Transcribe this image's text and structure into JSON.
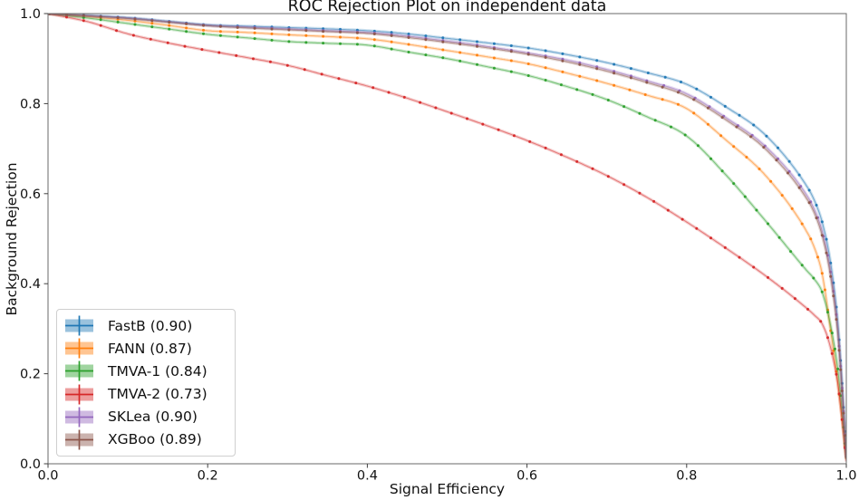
{
  "chart_data": {
    "type": "line",
    "title": "ROC Rejection Plot on independent data",
    "xlabel": "Signal Efficiency",
    "ylabel": "Background Rejection",
    "xlim": [
      0.0,
      1.0
    ],
    "ylim": [
      0.0,
      1.0
    ],
    "xticks": [
      "0.0",
      "0.2",
      "0.4",
      "0.6",
      "0.8",
      "1.0"
    ],
    "yticks": [
      "0.0",
      "0.2",
      "0.4",
      "0.6",
      "0.8",
      "1.0"
    ],
    "grid": false,
    "legend_position": "lower left",
    "marker_style": "dot-with-errorband",
    "x": [
      0.0,
      0.05,
      0.1,
      0.15,
      0.2,
      0.25,
      0.3,
      0.35,
      0.4,
      0.45,
      0.5,
      0.55,
      0.6,
      0.65,
      0.7,
      0.75,
      0.8,
      0.85,
      0.9,
      0.95,
      0.96,
      0.97,
      0.98,
      0.99,
      1.0
    ],
    "series": [
      {
        "name": "FastB",
        "legend_label": "FastB (0.90)",
        "auc": 0.9,
        "color": "#1f77b4",
        "y": [
          1.0,
          0.996,
          0.991,
          0.983,
          0.975,
          0.972,
          0.969,
          0.966,
          0.962,
          0.955,
          0.945,
          0.935,
          0.924,
          0.909,
          0.891,
          0.869,
          0.843,
          0.792,
          0.728,
          0.618,
          0.585,
          0.535,
          0.45,
          0.3,
          0.02
        ]
      },
      {
        "name": "FANN",
        "legend_label": "FANN (0.87)",
        "auc": 0.87,
        "color": "#ff7f0e",
        "y": [
          1.0,
          0.993,
          0.985,
          0.974,
          0.962,
          0.958,
          0.953,
          0.949,
          0.944,
          0.932,
          0.918,
          0.904,
          0.889,
          0.868,
          0.845,
          0.819,
          0.789,
          0.718,
          0.638,
          0.517,
          0.48,
          0.42,
          0.3,
          0.17,
          0.01
        ]
      },
      {
        "name": "TMVA-1",
        "legend_label": "TMVA-1 (0.84)",
        "auc": 0.84,
        "color": "#2ca02c",
        "y": [
          1.0,
          0.99,
          0.978,
          0.966,
          0.954,
          0.946,
          0.938,
          0.934,
          0.93,
          0.915,
          0.9,
          0.882,
          0.863,
          0.838,
          0.809,
          0.771,
          0.728,
          0.64,
          0.537,
          0.43,
          0.41,
          0.38,
          0.31,
          0.2,
          0.01
        ]
      },
      {
        "name": "TMVA-2",
        "legend_label": "TMVA-2 (0.73)",
        "auc": 0.73,
        "color": "#d62728",
        "y": [
          1.0,
          0.982,
          0.955,
          0.935,
          0.918,
          0.902,
          0.885,
          0.862,
          0.839,
          0.812,
          0.782,
          0.751,
          0.718,
          0.681,
          0.64,
          0.592,
          0.537,
          0.478,
          0.416,
          0.346,
          0.33,
          0.31,
          0.26,
          0.17,
          0.005
        ]
      },
      {
        "name": "SKLea",
        "legend_label": "SKLea (0.90)",
        "auc": 0.9,
        "color": "#9467bd",
        "y": [
          1.0,
          0.995,
          0.99,
          0.982,
          0.974,
          0.97,
          0.966,
          0.962,
          0.958,
          0.95,
          0.939,
          0.927,
          0.913,
          0.897,
          0.876,
          0.851,
          0.822,
          0.768,
          0.703,
          0.598,
          0.565,
          0.515,
          0.43,
          0.285,
          0.015
        ]
      },
      {
        "name": "XGBoo",
        "legend_label": "XGBoo (0.89)",
        "auc": 0.89,
        "color": "#8c564b",
        "y": [
          1.0,
          0.995,
          0.989,
          0.981,
          0.973,
          0.968,
          0.964,
          0.96,
          0.956,
          0.947,
          0.936,
          0.924,
          0.91,
          0.893,
          0.872,
          0.847,
          0.817,
          0.763,
          0.697,
          0.59,
          0.557,
          0.505,
          0.42,
          0.275,
          0.015
        ]
      }
    ],
    "style": {
      "spine_color": "#6a6a6a",
      "tick_color": "#3f3f3f",
      "text_color": "#111111",
      "background": "#ffffff"
    }
  }
}
